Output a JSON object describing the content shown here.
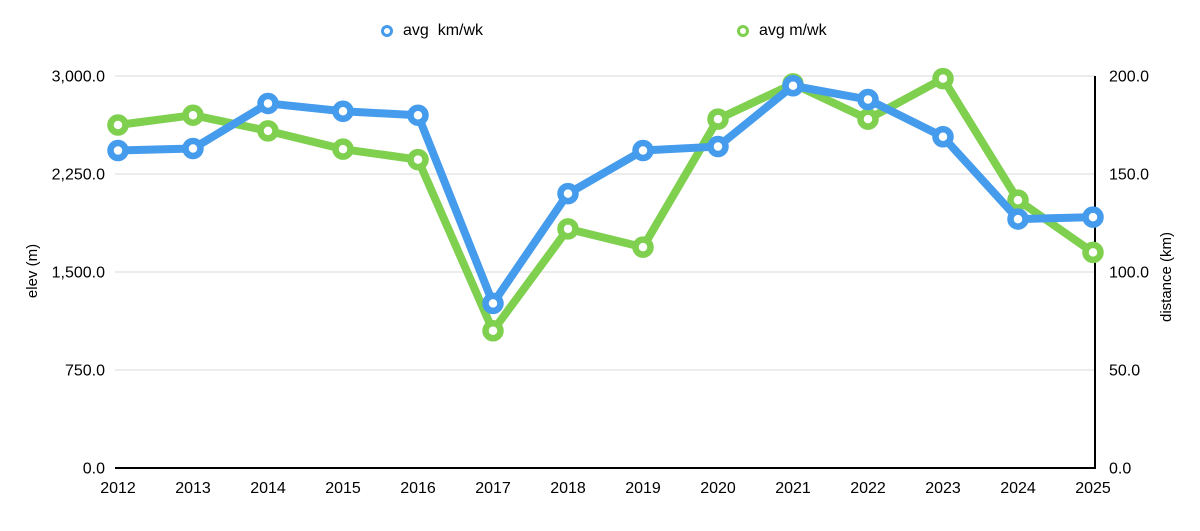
{
  "legend": {
    "items": [
      {
        "label": "avg  km/wk",
        "color": "#459bec"
      },
      {
        "label": "avg m/wk",
        "color": "#7ed04e"
      }
    ]
  },
  "chart_data": {
    "type": "line",
    "title": "",
    "x": [
      "2012",
      "2013",
      "2014",
      "2015",
      "2016",
      "2017",
      "2018",
      "2019",
      "2020",
      "2021",
      "2022",
      "2023",
      "2024",
      "2025"
    ],
    "series": [
      {
        "name": "avg  km/wk",
        "axis": "right",
        "color": "#459bec",
        "values": [
          162,
          163,
          186,
          182,
          180,
          84,
          140,
          162,
          164,
          195,
          188,
          169,
          127,
          128
        ]
      },
      {
        "name": "avg m/wk",
        "axis": "left",
        "color": "#7ed04e",
        "values": [
          2625,
          2700,
          2580,
          2440,
          2360,
          1050,
          1830,
          1690,
          2670,
          2940,
          2670,
          2980,
          2050,
          1650
        ]
      }
    ],
    "left_axis": {
      "title": "elev (m)",
      "tick_values": [
        0,
        750,
        1500,
        2250,
        3000
      ],
      "tick_labels": [
        "0.0",
        "750.0",
        "1,500.0",
        "2,250.0",
        "3,000.0"
      ],
      "range": [
        0,
        3000
      ]
    },
    "right_axis": {
      "title": "distance (km)",
      "tick_values": [
        0,
        50,
        100,
        150,
        200
      ],
      "tick_labels": [
        "0.0",
        "50.0",
        "100.0",
        "150.0",
        "200.0"
      ],
      "range": [
        0,
        200
      ]
    },
    "grid": true,
    "legend_position": "top",
    "marker_style": "open-circle"
  }
}
